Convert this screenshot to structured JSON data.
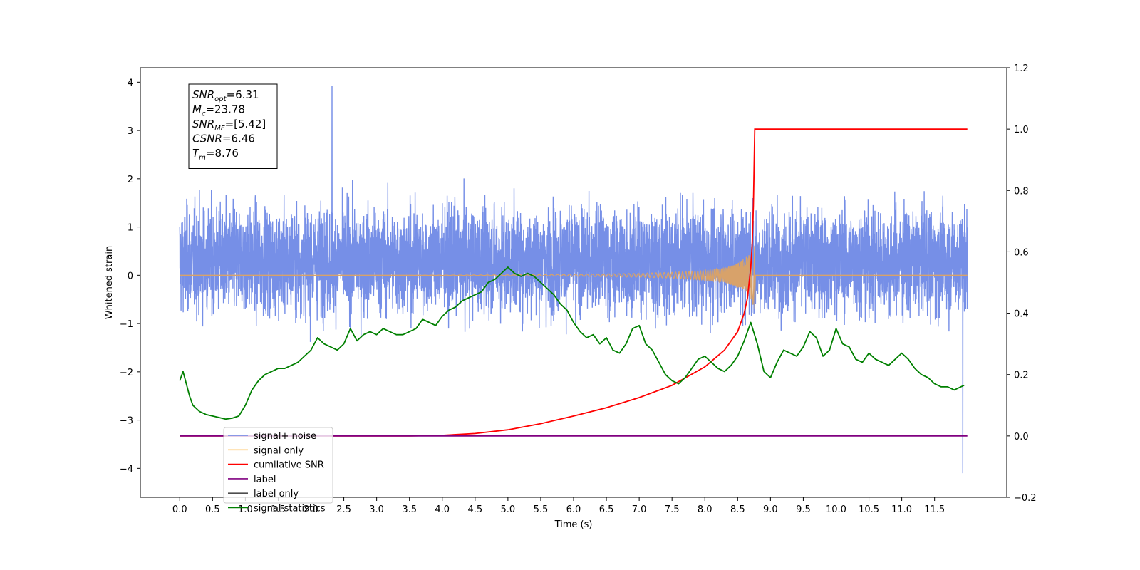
{
  "chart_data": {
    "type": "line",
    "xlabel": "Time (s)",
    "ylabel": "Whitened strain",
    "xlim": [
      -0.6,
      12.6
    ],
    "ylim": [
      -4.6,
      4.3
    ],
    "y2lim": [
      -0.2,
      1.2
    ],
    "x_ticks": [
      0.0,
      0.5,
      1.0,
      1.5,
      2.0,
      2.5,
      3.0,
      3.5,
      4.0,
      4.5,
      5.0,
      5.5,
      6.0,
      6.5,
      7.0,
      7.5,
      8.0,
      8.5,
      9.0,
      9.5,
      10.0,
      10.5,
      11.0,
      11.5
    ],
    "x_tick_labels": [
      "0.0",
      "0.5",
      "1.0",
      "1.5",
      "2.0",
      "2.5",
      "3.0",
      "3.5",
      "4.0",
      "4.5",
      "5.0",
      "5.5",
      "6.0",
      "6.5",
      "7.0",
      "7.5",
      "8.0",
      "8.5",
      "9.0",
      "9.5",
      "10.0",
      "10.5",
      "11.0",
      "11.5"
    ],
    "y_ticks": [
      -4,
      -3,
      -2,
      -1,
      0,
      1,
      2,
      3,
      4
    ],
    "y_tick_labels": [
      "−4",
      "−3",
      "−2",
      "−1",
      "0",
      "1",
      "2",
      "3",
      "4"
    ],
    "y2_ticks": [
      -0.2,
      0.0,
      0.2,
      0.4,
      0.6,
      0.8,
      1.0,
      1.2
    ],
    "y2_tick_labels": [
      "−0.2",
      "0.0",
      "0.2",
      "0.4",
      "0.6",
      "0.8",
      "1.0",
      "1.2"
    ],
    "annotation": {
      "lines": [
        {
          "main": "SNR",
          "sub": "opt",
          "value": "=6.31"
        },
        {
          "main": "M",
          "sub": "c",
          "value": "=23.78"
        },
        {
          "main": "SNR",
          "sub": "MF",
          "value": "=[5.42]"
        },
        {
          "main": "CSNR",
          "sub": "",
          "value": "=6.46"
        },
        {
          "main": "T",
          "sub": "m",
          "value": "=8.76"
        }
      ]
    },
    "legend_position": "lower-left",
    "series": [
      {
        "name": "signal+ noise",
        "color": "#6a86e5",
        "axis": "left",
        "x_range": [
          0.0,
          12.0
        ],
        "baseline": 0.3,
        "band_lower": -1.3,
        "band_upper": 1.3,
        "peak_max": 3.93,
        "peak_min": -4.1,
        "x_peak_max": 2.32,
        "x_peak_min": 11.93
      },
      {
        "name": "signal only",
        "color": "#f5b041",
        "axis": "left",
        "x": [
          0.0,
          3.5,
          5.0,
          6.0,
          7.0,
          7.5,
          8.0,
          8.3,
          8.5,
          8.6,
          8.7,
          8.76,
          8.77,
          12.0
        ],
        "envelope": [
          0.0,
          0.0,
          0.01,
          0.02,
          0.04,
          0.06,
          0.1,
          0.15,
          0.25,
          0.35,
          0.5,
          0.7,
          0.0,
          0.0
        ]
      },
      {
        "name": "cumilative SNR",
        "color": "#ff0000",
        "axis": "right",
        "x": [
          0.0,
          3.5,
          4.0,
          4.5,
          5.0,
          5.5,
          6.0,
          6.5,
          7.0,
          7.5,
          8.0,
          8.3,
          8.5,
          8.6,
          8.65,
          8.7,
          8.72,
          8.74,
          8.76,
          8.77,
          12.0
        ],
        "values": [
          0.0,
          0.0,
          0.002,
          0.008,
          0.02,
          0.04,
          0.065,
          0.092,
          0.125,
          0.165,
          0.225,
          0.28,
          0.34,
          0.4,
          0.45,
          0.55,
          0.62,
          0.75,
          1.0,
          1.0,
          1.0
        ]
      },
      {
        "name": "label",
        "color": "#800080",
        "axis": "right",
        "x": [
          0.0,
          12.0
        ],
        "values": [
          0.0,
          0.0
        ]
      },
      {
        "name": "label only",
        "color": "#4d4d4d",
        "axis": "right",
        "hidden": true,
        "x": [],
        "values": []
      },
      {
        "name": "signal statistics",
        "color": "#008000",
        "axis": "right",
        "x": [
          0.0,
          0.05,
          0.1,
          0.15,
          0.2,
          0.3,
          0.4,
          0.5,
          0.6,
          0.7,
          0.8,
          0.9,
          1.0,
          1.1,
          1.2,
          1.3,
          1.4,
          1.5,
          1.6,
          1.7,
          1.8,
          1.9,
          2.0,
          2.1,
          2.2,
          2.3,
          2.4,
          2.5,
          2.6,
          2.7,
          2.8,
          2.9,
          3.0,
          3.1,
          3.2,
          3.3,
          3.4,
          3.5,
          3.6,
          3.7,
          3.8,
          3.9,
          4.0,
          4.1,
          4.2,
          4.3,
          4.4,
          4.5,
          4.6,
          4.7,
          4.8,
          4.9,
          5.0,
          5.1,
          5.2,
          5.3,
          5.4,
          5.5,
          5.6,
          5.7,
          5.8,
          5.9,
          6.0,
          6.1,
          6.2,
          6.3,
          6.4,
          6.5,
          6.6,
          6.7,
          6.8,
          6.9,
          7.0,
          7.1,
          7.2,
          7.3,
          7.4,
          7.5,
          7.6,
          7.7,
          7.8,
          7.9,
          8.0,
          8.1,
          8.2,
          8.3,
          8.4,
          8.5,
          8.6,
          8.7,
          8.8,
          8.9,
          9.0,
          9.1,
          9.2,
          9.3,
          9.4,
          9.5,
          9.6,
          9.7,
          9.8,
          9.9,
          10.0,
          10.1,
          10.2,
          10.3,
          10.4,
          10.5,
          10.6,
          10.7,
          10.8,
          10.9,
          11.0,
          11.1,
          11.2,
          11.3,
          11.4,
          11.5,
          11.6,
          11.7,
          11.8,
          11.9,
          11.95
        ],
        "values": [
          0.18,
          0.21,
          0.17,
          0.13,
          0.1,
          0.08,
          0.07,
          0.065,
          0.06,
          0.055,
          0.058,
          0.065,
          0.1,
          0.15,
          0.18,
          0.2,
          0.21,
          0.22,
          0.22,
          0.23,
          0.24,
          0.26,
          0.28,
          0.32,
          0.3,
          0.29,
          0.28,
          0.3,
          0.35,
          0.31,
          0.33,
          0.34,
          0.33,
          0.35,
          0.34,
          0.33,
          0.33,
          0.34,
          0.35,
          0.38,
          0.37,
          0.36,
          0.39,
          0.41,
          0.42,
          0.44,
          0.45,
          0.46,
          0.47,
          0.5,
          0.51,
          0.53,
          0.55,
          0.53,
          0.52,
          0.53,
          0.52,
          0.5,
          0.48,
          0.46,
          0.43,
          0.41,
          0.37,
          0.34,
          0.32,
          0.33,
          0.3,
          0.32,
          0.28,
          0.27,
          0.3,
          0.35,
          0.36,
          0.3,
          0.28,
          0.24,
          0.2,
          0.18,
          0.17,
          0.19,
          0.22,
          0.25,
          0.26,
          0.24,
          0.22,
          0.21,
          0.23,
          0.26,
          0.31,
          0.37,
          0.3,
          0.21,
          0.19,
          0.24,
          0.28,
          0.27,
          0.26,
          0.29,
          0.34,
          0.32,
          0.26,
          0.28,
          0.35,
          0.3,
          0.29,
          0.25,
          0.24,
          0.27,
          0.25,
          0.24,
          0.23,
          0.25,
          0.27,
          0.25,
          0.22,
          0.2,
          0.19,
          0.17,
          0.16,
          0.16,
          0.15,
          0.16,
          0.165
        ]
      }
    ]
  }
}
